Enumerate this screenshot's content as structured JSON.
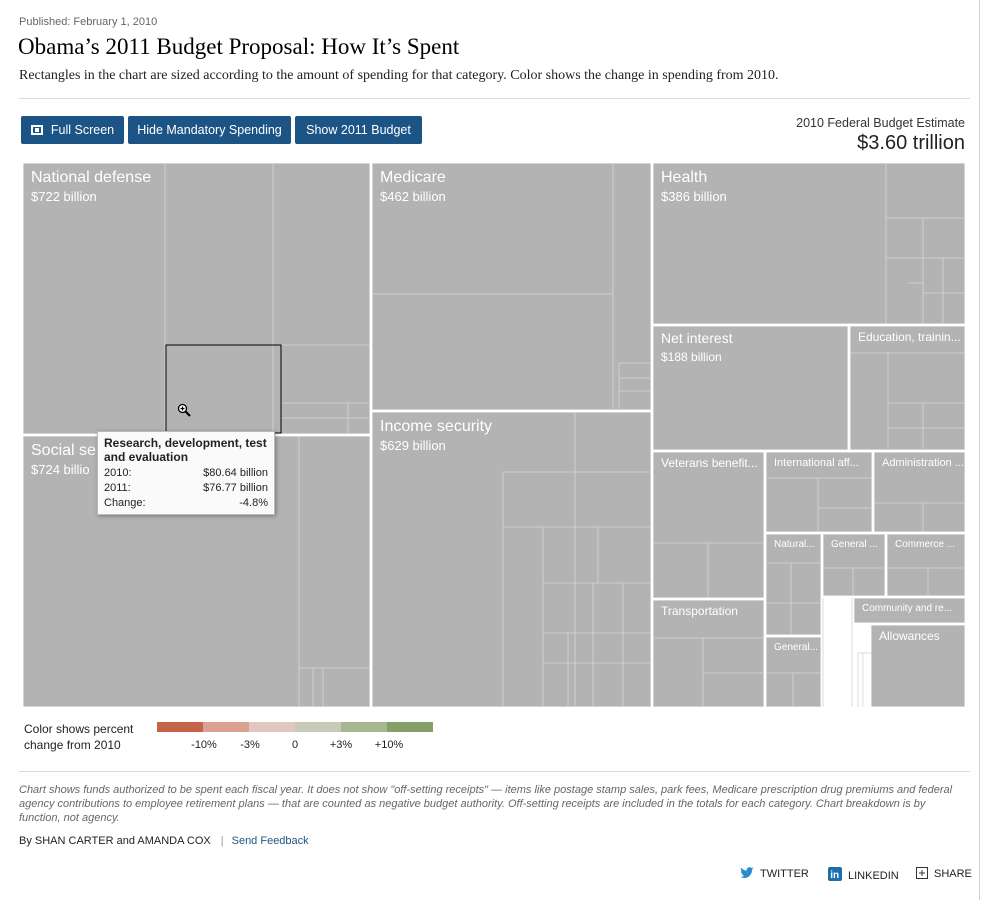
{
  "header": {
    "published": "Published: February 1, 2010",
    "title": "Obama’s 2011 Budget Proposal: How It’s Spent",
    "subtitle": "Rectangles in the chart are sized according to the amount of spending for that category. Color shows the change in spending from 2010."
  },
  "toolbar": {
    "full_screen_label": "Full Screen",
    "hide_mandatory_label": "Hide Mandatory Spending",
    "show_2011_label": "Show 2011 Budget"
  },
  "estimate": {
    "label": "2010 Federal Budget Estimate",
    "value": "$3.60 trillion"
  },
  "tooltip": {
    "title": "Research, development, test and evaluation",
    "row1_label": "2010:",
    "row1_value": "$80.64 billion",
    "row2_label": "2011:",
    "row2_value": "$76.77 billion",
    "row3_label": "Change:",
    "row3_value": "-4.8%"
  },
  "legend": {
    "text_line1": "Color shows percent",
    "text_line2": "change from 2010",
    "ticks": [
      "-10%",
      "-3%",
      "0",
      "+3%",
      "+10%"
    ],
    "colors": [
      "#c4654a",
      "#daa090",
      "#e4c6c0",
      "#c6cbb8",
      "#a7b890",
      "#84a068"
    ]
  },
  "footer": {
    "note": "Chart shows funds authorized to be spent each fiscal year. It does not show \"off-setting receipts\" — items like postage stamp sales, park fees, Medicare prescription drug premiums and federal agency contributions to employee retirement plans — that are counted as negative budget authority. Off-setting receipts are included in the totals for each category. Chart breakdown is by function, not agency.",
    "byline": "By SHAN CARTER and AMANDA COX",
    "feedback": "Send Feedback",
    "twitter": "TWITTER",
    "linkedin": "LINKEDIN",
    "share": "SHARE"
  },
  "colors": {
    "button": "#1d5486",
    "tile": "#b3b3b3",
    "tile_border": "#ffffff"
  },
  "chart_data": {
    "type": "treemap",
    "value_unit": "billion dollars (2010)",
    "highlighted": {
      "name": "Research, development, test and evaluation",
      "parent": "National defense",
      "value_2010": 80.64,
      "value_2011": 76.77,
      "change_pct": -4.8
    },
    "categories": [
      {
        "name": "National defense",
        "value_label": "$722 billion",
        "value": 722
      },
      {
        "name": "Social security",
        "visible_label": "Social se",
        "value_label": "$724 billion",
        "visible_value_label": "$724 billio",
        "value": 724
      },
      {
        "name": "Medicare",
        "value_label": "$462 billion",
        "value": 462
      },
      {
        "name": "Income security",
        "value_label": "$629 billion",
        "value": 629
      },
      {
        "name": "Health",
        "value_label": "$386 billion",
        "value": 386
      },
      {
        "name": "Net interest",
        "value_label": "$188 billion",
        "value": 188
      },
      {
        "name": "Education, trainin...",
        "value_label": "",
        "value": null
      },
      {
        "name": "Veterans benefit...",
        "value_label": "",
        "value": null
      },
      {
        "name": "International aff...",
        "value_label": "",
        "value": null
      },
      {
        "name": "Administration ...",
        "value_label": "",
        "value": null
      },
      {
        "name": "Natural...",
        "value_label": "",
        "value": null
      },
      {
        "name": "General ...",
        "value_label": "",
        "value": null
      },
      {
        "name": "Commerce ...",
        "value_label": "",
        "value": null
      },
      {
        "name": "Transportation",
        "value_label": "",
        "value": null
      },
      {
        "name": "General...",
        "value_label": "",
        "value": null
      },
      {
        "name": "Community and re...",
        "value_label": "",
        "value": null
      },
      {
        "name": "Allowances",
        "value_label": "",
        "value": null
      }
    ]
  }
}
